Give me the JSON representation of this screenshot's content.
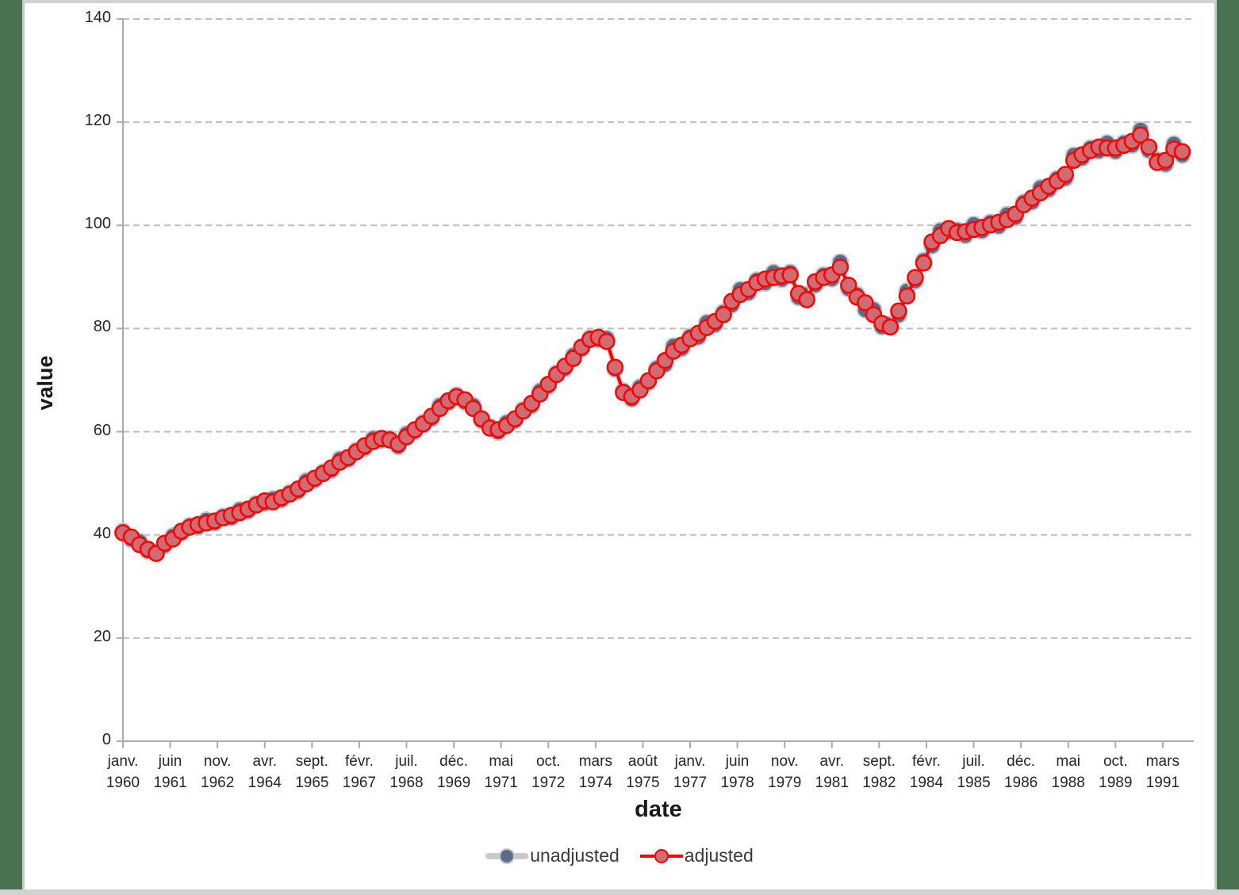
{
  "frame": {
    "background_color": "#4a7150",
    "panel_color": "#ffffff",
    "border_bar_color": "#d2d2d2"
  },
  "chart_data": {
    "type": "line",
    "title": "",
    "xlabel": "date",
    "ylabel": "value",
    "ylim": [
      0,
      140
    ],
    "y_ticks": [
      0,
      20,
      40,
      60,
      80,
      100,
      120,
      140
    ],
    "grid": "horizontal-dashed",
    "legend_position": "bottom-center",
    "frequency": "quarterly",
    "start": {
      "year": 1960,
      "quarter": 1
    },
    "end": {
      "year": 1991,
      "quarter": 4
    },
    "x_tick_labels": [
      {
        "month": "janv.",
        "year": "1960"
      },
      {
        "month": "juin",
        "year": "1961"
      },
      {
        "month": "nov.",
        "year": "1962"
      },
      {
        "month": "avr.",
        "year": "1964"
      },
      {
        "month": "sept.",
        "year": "1965"
      },
      {
        "month": "févr.",
        "year": "1967"
      },
      {
        "month": "juil.",
        "year": "1968"
      },
      {
        "month": "déc.",
        "year": "1969"
      },
      {
        "month": "mai",
        "year": "1971"
      },
      {
        "month": "oct.",
        "year": "1972"
      },
      {
        "month": "mars",
        "year": "1974"
      },
      {
        "month": "août",
        "year": "1975"
      },
      {
        "month": "janv.",
        "year": "1977"
      },
      {
        "month": "juin",
        "year": "1978"
      },
      {
        "month": "nov.",
        "year": "1979"
      },
      {
        "month": "avr.",
        "year": "1981"
      },
      {
        "month": "sept.",
        "year": "1982"
      },
      {
        "month": "févr.",
        "year": "1984"
      },
      {
        "month": "juil.",
        "year": "1985"
      },
      {
        "month": "déc.",
        "year": "1986"
      },
      {
        "month": "mai",
        "year": "1988"
      },
      {
        "month": "oct.",
        "year": "1989"
      },
      {
        "month": "mars",
        "year": "1991"
      }
    ],
    "colors": {
      "axis": "#ababab",
      "gridline": "#bfbfbf",
      "tick_text": "#262626",
      "unadjusted_line": "#c9c9c9",
      "unadjusted_marker_fill": "#5b6c87",
      "unadjusted_marker_stroke": "#c2c8cf",
      "adjusted_line": "#fe0000",
      "adjusted_marker_fill": "#ce6b73",
      "adjusted_marker_stroke": "#fe0000"
    },
    "series": [
      {
        "name": "unadjusted",
        "values": [
          40.7,
          39.1,
          38.7,
          36.8,
          36.7,
          37.9,
          39.8,
          40.3,
          41.8,
          41.5,
          42.9,
          42.3,
          43.6,
          43.3,
          44.9,
          44.6,
          46.1,
          46.1,
          47.0,
          46.8,
          48.2,
          48.4,
          50.5,
          50.6,
          52.2,
          52.5,
          54.7,
          54.6,
          56.4,
          56.8,
          58.7,
          58.3,
          58.7,
          57.1,
          59.6,
          60.0,
          61.8,
          62.5,
          65.1,
          65.6,
          67.1,
          65.7,
          65.1,
          62.1,
          61.0,
          59.9,
          61.8,
          62.1,
          64.3,
          65.0,
          67.9,
          68.8,
          71.4,
          72.2,
          74.8,
          76.0,
          78.2,
          77.8,
          78.1,
          72.1,
          67.9,
          66.3,
          68.7,
          69.5,
          72.3,
          73.0,
          76.6,
          76.1,
          78.5,
          78.3,
          81.2,
          80.7,
          83.2,
          84.5,
          87.6,
          86.9,
          89.4,
          88.8,
          90.9,
          89.5,
          90.9,
          86.0,
          86.6,
          88.4,
          90.4,
          89.6,
          92.9,
          87.7,
          86.6,
          83.6,
          83.7,
          80.3,
          80.8,
          82.6,
          87.3,
          89.2,
          93.2,
          96.0,
          99.0,
          98.7,
          99.1,
          98.0,
          100.2,
          98.9,
          100.6,
          99.8,
          102.1,
          101.5,
          104.5,
          104.5,
          107.3,
          106.9,
          109.1,
          109.1,
          113.6,
          113.0,
          115.0,
          114.4,
          116.0,
          114.3,
          116.0,
          115.5,
          118.5,
          114.5,
          112.7,
          111.8,
          115.8,
          113.6
        ]
      },
      {
        "name": "adjusted",
        "values": [
          40.4,
          39.6,
          38.1,
          37.2,
          36.4,
          38.4,
          39.2,
          40.7,
          41.5,
          42.0,
          42.3,
          42.7,
          43.3,
          43.8,
          44.3,
          45.0,
          45.8,
          46.6,
          46.4,
          47.2,
          47.9,
          48.9,
          49.9,
          51.0,
          51.9,
          53.0,
          54.1,
          55.0,
          56.1,
          57.3,
          58.1,
          58.7,
          58.4,
          57.6,
          59.0,
          60.4,
          61.5,
          63.0,
          64.5,
          66.0,
          66.8,
          66.2,
          64.5,
          62.5,
          60.7,
          60.4,
          61.2,
          62.5,
          64.0,
          65.5,
          67.3,
          69.2,
          71.1,
          72.7,
          74.2,
          76.4,
          77.9,
          78.3,
          77.5,
          72.5,
          67.6,
          66.8,
          68.1,
          69.9,
          71.8,
          73.8,
          75.6,
          76.8,
          78.0,
          79.1,
          80.2,
          81.4,
          82.7,
          85.3,
          86.6,
          87.6,
          88.9,
          89.6,
          89.9,
          90.2,
          90.4,
          86.8,
          85.6,
          89.1,
          89.9,
          90.4,
          91.9,
          88.4,
          86.1,
          85.0,
          82.7,
          81.0,
          80.3,
          83.4,
          86.3,
          89.9,
          92.7,
          96.8,
          98.0,
          99.4,
          98.6,
          98.8,
          99.2,
          99.6,
          100.1,
          100.6,
          101.1,
          102.2,
          104.0,
          105.3,
          106.3,
          107.6,
          108.6,
          109.9,
          112.6,
          113.7,
          114.5,
          115.2,
          115.0,
          115.0,
          115.5,
          116.3,
          117.5,
          115.2,
          112.2,
          112.6,
          114.8,
          114.3
        ]
      }
    ]
  }
}
